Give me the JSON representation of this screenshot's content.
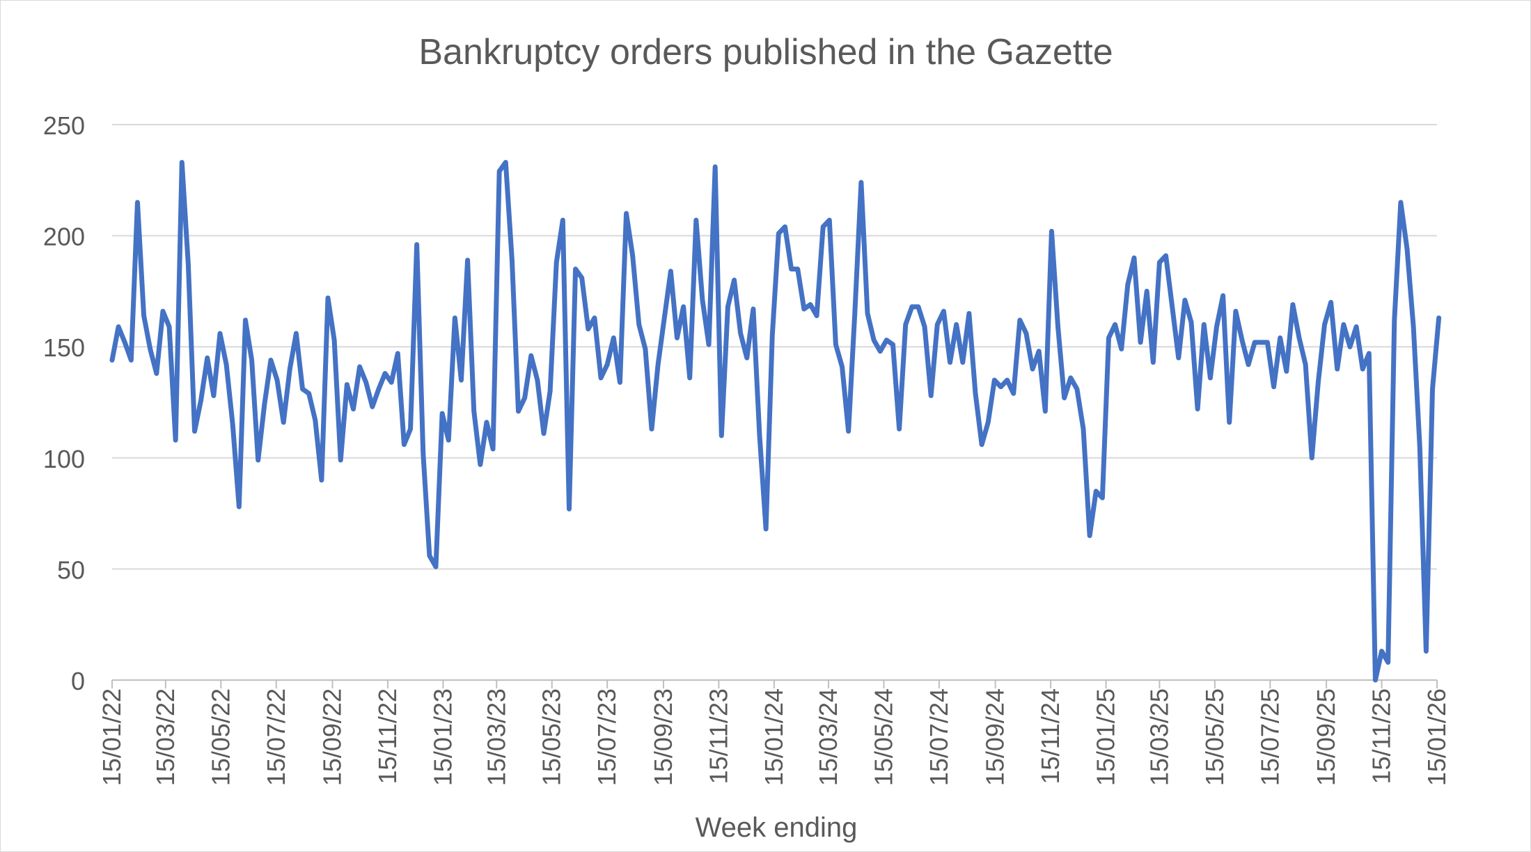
{
  "chart_data": {
    "type": "line",
    "title": "Bankruptcy orders published in the Gazette",
    "xlabel": "Week ending",
    "ylabel": "",
    "ylim": [
      0,
      250
    ],
    "yticks": [
      "0",
      "50",
      "100",
      "150",
      "200",
      "250"
    ],
    "xticks": [
      "15/01/22",
      "15/03/22",
      "15/05/22",
      "15/07/22",
      "15/09/22",
      "15/11/22",
      "15/01/23",
      "15/03/23",
      "15/05/23",
      "15/07/23",
      "15/09/23",
      "15/11/23",
      "15/01/24",
      "15/03/24",
      "15/05/24",
      "15/07/24",
      "15/09/24",
      "15/11/24",
      "15/01/25",
      "15/03/25",
      "15/05/25",
      "15/07/25",
      "15/09/25",
      "15/11/25",
      "15/01/26"
    ],
    "grid": true,
    "legend": "none",
    "series": [
      {
        "color": "#4472C4",
        "x_start": "15/01/22",
        "x_step": "1 week",
        "values": [
          144,
          159,
          152,
          144,
          215,
          164,
          149,
          138,
          166,
          159,
          108,
          233,
          187,
          112,
          126,
          145,
          128,
          156,
          142,
          115,
          78,
          162,
          144,
          99,
          124,
          144,
          135,
          116,
          140,
          156,
          131,
          129,
          117,
          90,
          172,
          153,
          99,
          133,
          122,
          141,
          134,
          123,
          131,
          138,
          134,
          147,
          106,
          113,
          196,
          102,
          56,
          51,
          120,
          108,
          163,
          135,
          189,
          121,
          97,
          116,
          104,
          229,
          233,
          189,
          121,
          127,
          146,
          135,
          111,
          130,
          188,
          207,
          77,
          185,
          181,
          158,
          163,
          136,
          142,
          154,
          134,
          210,
          191,
          160,
          149,
          113,
          142,
          163,
          184,
          154,
          168,
          136,
          207,
          171,
          151,
          231,
          110,
          168,
          180,
          156,
          145,
          167,
          110,
          68,
          155,
          201,
          204,
          185,
          185,
          167,
          169,
          164,
          204,
          207,
          151,
          141,
          112,
          165,
          224,
          165,
          153,
          148,
          153,
          151,
          113,
          160,
          168,
          168,
          159,
          128,
          160,
          166,
          143,
          160,
          143,
          165,
          129,
          106,
          116,
          135,
          132,
          135,
          129,
          162,
          156,
          140,
          148,
          121,
          202,
          159,
          127,
          136,
          131,
          113,
          65,
          85,
          82,
          154,
          160,
          149,
          178,
          190,
          152,
          175,
          143,
          188,
          191,
          168,
          145,
          171,
          161,
          122,
          160,
          136,
          159,
          173,
          116,
          166,
          153,
          142,
          152,
          152,
          152,
          132,
          154,
          139,
          169,
          154,
          142,
          100,
          134,
          160,
          170,
          140,
          160,
          150,
          159,
          140,
          147,
          0,
          13,
          8,
          162,
          215,
          194,
          159,
          105,
          13,
          131,
          163
        ]
      }
    ]
  }
}
